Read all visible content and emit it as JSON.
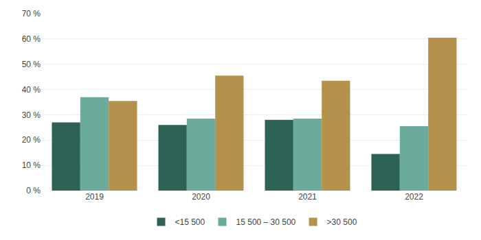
{
  "chart_data": {
    "type": "bar",
    "categories": [
      "2019",
      "2020",
      "2021",
      "2022"
    ],
    "series": [
      {
        "name": "<15 500",
        "color": "#2d6357",
        "values": [
          27,
          26,
          28,
          14.5
        ]
      },
      {
        "name": "15 500 – 30 500",
        "color": "#6aab9c",
        "values": [
          37,
          28.5,
          28.5,
          25.5
        ]
      },
      {
        "name": ">30 500",
        "color": "#b5924c",
        "values": [
          35.5,
          45.5,
          43.5,
          60.5
        ]
      }
    ],
    "ylim": [
      0,
      70
    ],
    "yticks": [
      {
        "value": 0,
        "label": "0 %"
      },
      {
        "value": 10,
        "label": "10 %"
      },
      {
        "value": 20,
        "label": "20 %"
      },
      {
        "value": 30,
        "label": "30 %"
      },
      {
        "value": 40,
        "label": "40 %"
      },
      {
        "value": 50,
        "label": "50 %"
      },
      {
        "value": 60,
        "label": "60 %"
      },
      {
        "value": 70,
        "label": "70 %"
      }
    ],
    "grid": true,
    "legend": "bottom"
  }
}
